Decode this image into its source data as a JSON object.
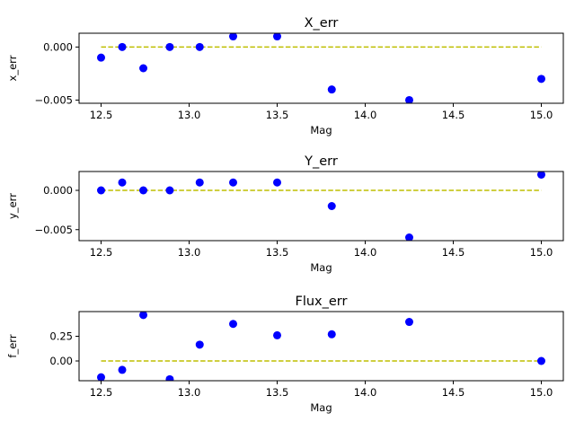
{
  "chart_data": [
    {
      "type": "scatter",
      "title": "X_err",
      "xlabel": "Mag",
      "ylabel": "x_err",
      "xlim": [
        12.375,
        15.125
      ],
      "ylim": [
        -0.0053,
        0.0013
      ],
      "xticks": [
        12.5,
        13.0,
        13.5,
        14.0,
        14.5,
        15.0
      ],
      "xtick_labels": [
        "12.5",
        "13.0",
        "13.5",
        "14.0",
        "14.5",
        "15.0"
      ],
      "yticks": [
        0.0,
        -0.005
      ],
      "ytick_labels": [
        "0.000",
        "−0.005"
      ],
      "points": {
        "x": [
          12.5,
          12.62,
          12.74,
          12.89,
          13.06,
          13.25,
          13.5,
          13.81,
          14.25,
          15.0
        ],
        "y": [
          -0.001,
          0.0,
          -0.002,
          0.0,
          0.0,
          0.001,
          0.001,
          -0.004,
          -0.005,
          -0.003
        ],
        "color": "#0000ff"
      },
      "reference_line": {
        "y": 0.0,
        "x_from": 12.5,
        "x_to": 15.0,
        "style": "dashed",
        "color": "#bfbf00"
      }
    },
    {
      "type": "scatter",
      "title": "Y_err",
      "xlabel": "Mag",
      "ylabel": "y_err",
      "xlim": [
        12.375,
        15.125
      ],
      "ylim": [
        -0.0064,
        0.0024
      ],
      "xticks": [
        12.5,
        13.0,
        13.5,
        14.0,
        14.5,
        15.0
      ],
      "xtick_labels": [
        "12.5",
        "13.0",
        "13.5",
        "14.0",
        "14.5",
        "15.0"
      ],
      "yticks": [
        0.0,
        -0.005
      ],
      "ytick_labels": [
        "0.000",
        "−0.005"
      ],
      "points": {
        "x": [
          12.5,
          12.62,
          12.74,
          12.89,
          13.06,
          13.25,
          13.5,
          13.81,
          14.25,
          15.0
        ],
        "y": [
          0.0,
          0.001,
          0.0,
          0.0,
          0.001,
          0.001,
          0.001,
          -0.002,
          -0.006,
          0.002
        ],
        "color": "#0000ff"
      },
      "reference_line": {
        "y": 0.0,
        "x_from": 12.5,
        "x_to": 15.0,
        "style": "dashed",
        "color": "#bfbf00"
      }
    },
    {
      "type": "scatter",
      "title": "Flux_err",
      "xlabel": "Mag",
      "ylabel": "f_err",
      "xlim": [
        12.375,
        15.125
      ],
      "ylim": [
        -0.2,
        0.5
      ],
      "xticks": [
        12.5,
        13.0,
        13.5,
        14.0,
        14.5,
        15.0
      ],
      "xtick_labels": [
        "12.5",
        "13.0",
        "13.5",
        "14.0",
        "14.5",
        "15.0"
      ],
      "yticks": [
        0.25,
        0.0
      ],
      "ytick_labels": [
        "0.25",
        "0.00"
      ],
      "points": {
        "x": [
          12.5,
          12.62,
          12.74,
          12.89,
          13.06,
          13.25,
          13.5,
          13.81,
          14.25,
          15.0
        ],
        "y": [
          -0.165,
          -0.09,
          0.465,
          -0.185,
          0.165,
          0.375,
          0.26,
          0.27,
          0.395,
          0.0
        ],
        "color": "#0000ff"
      },
      "reference_line": {
        "y": 0.0,
        "x_from": 12.5,
        "x_to": 15.0,
        "style": "dashed",
        "color": "#bfbf00"
      }
    }
  ]
}
